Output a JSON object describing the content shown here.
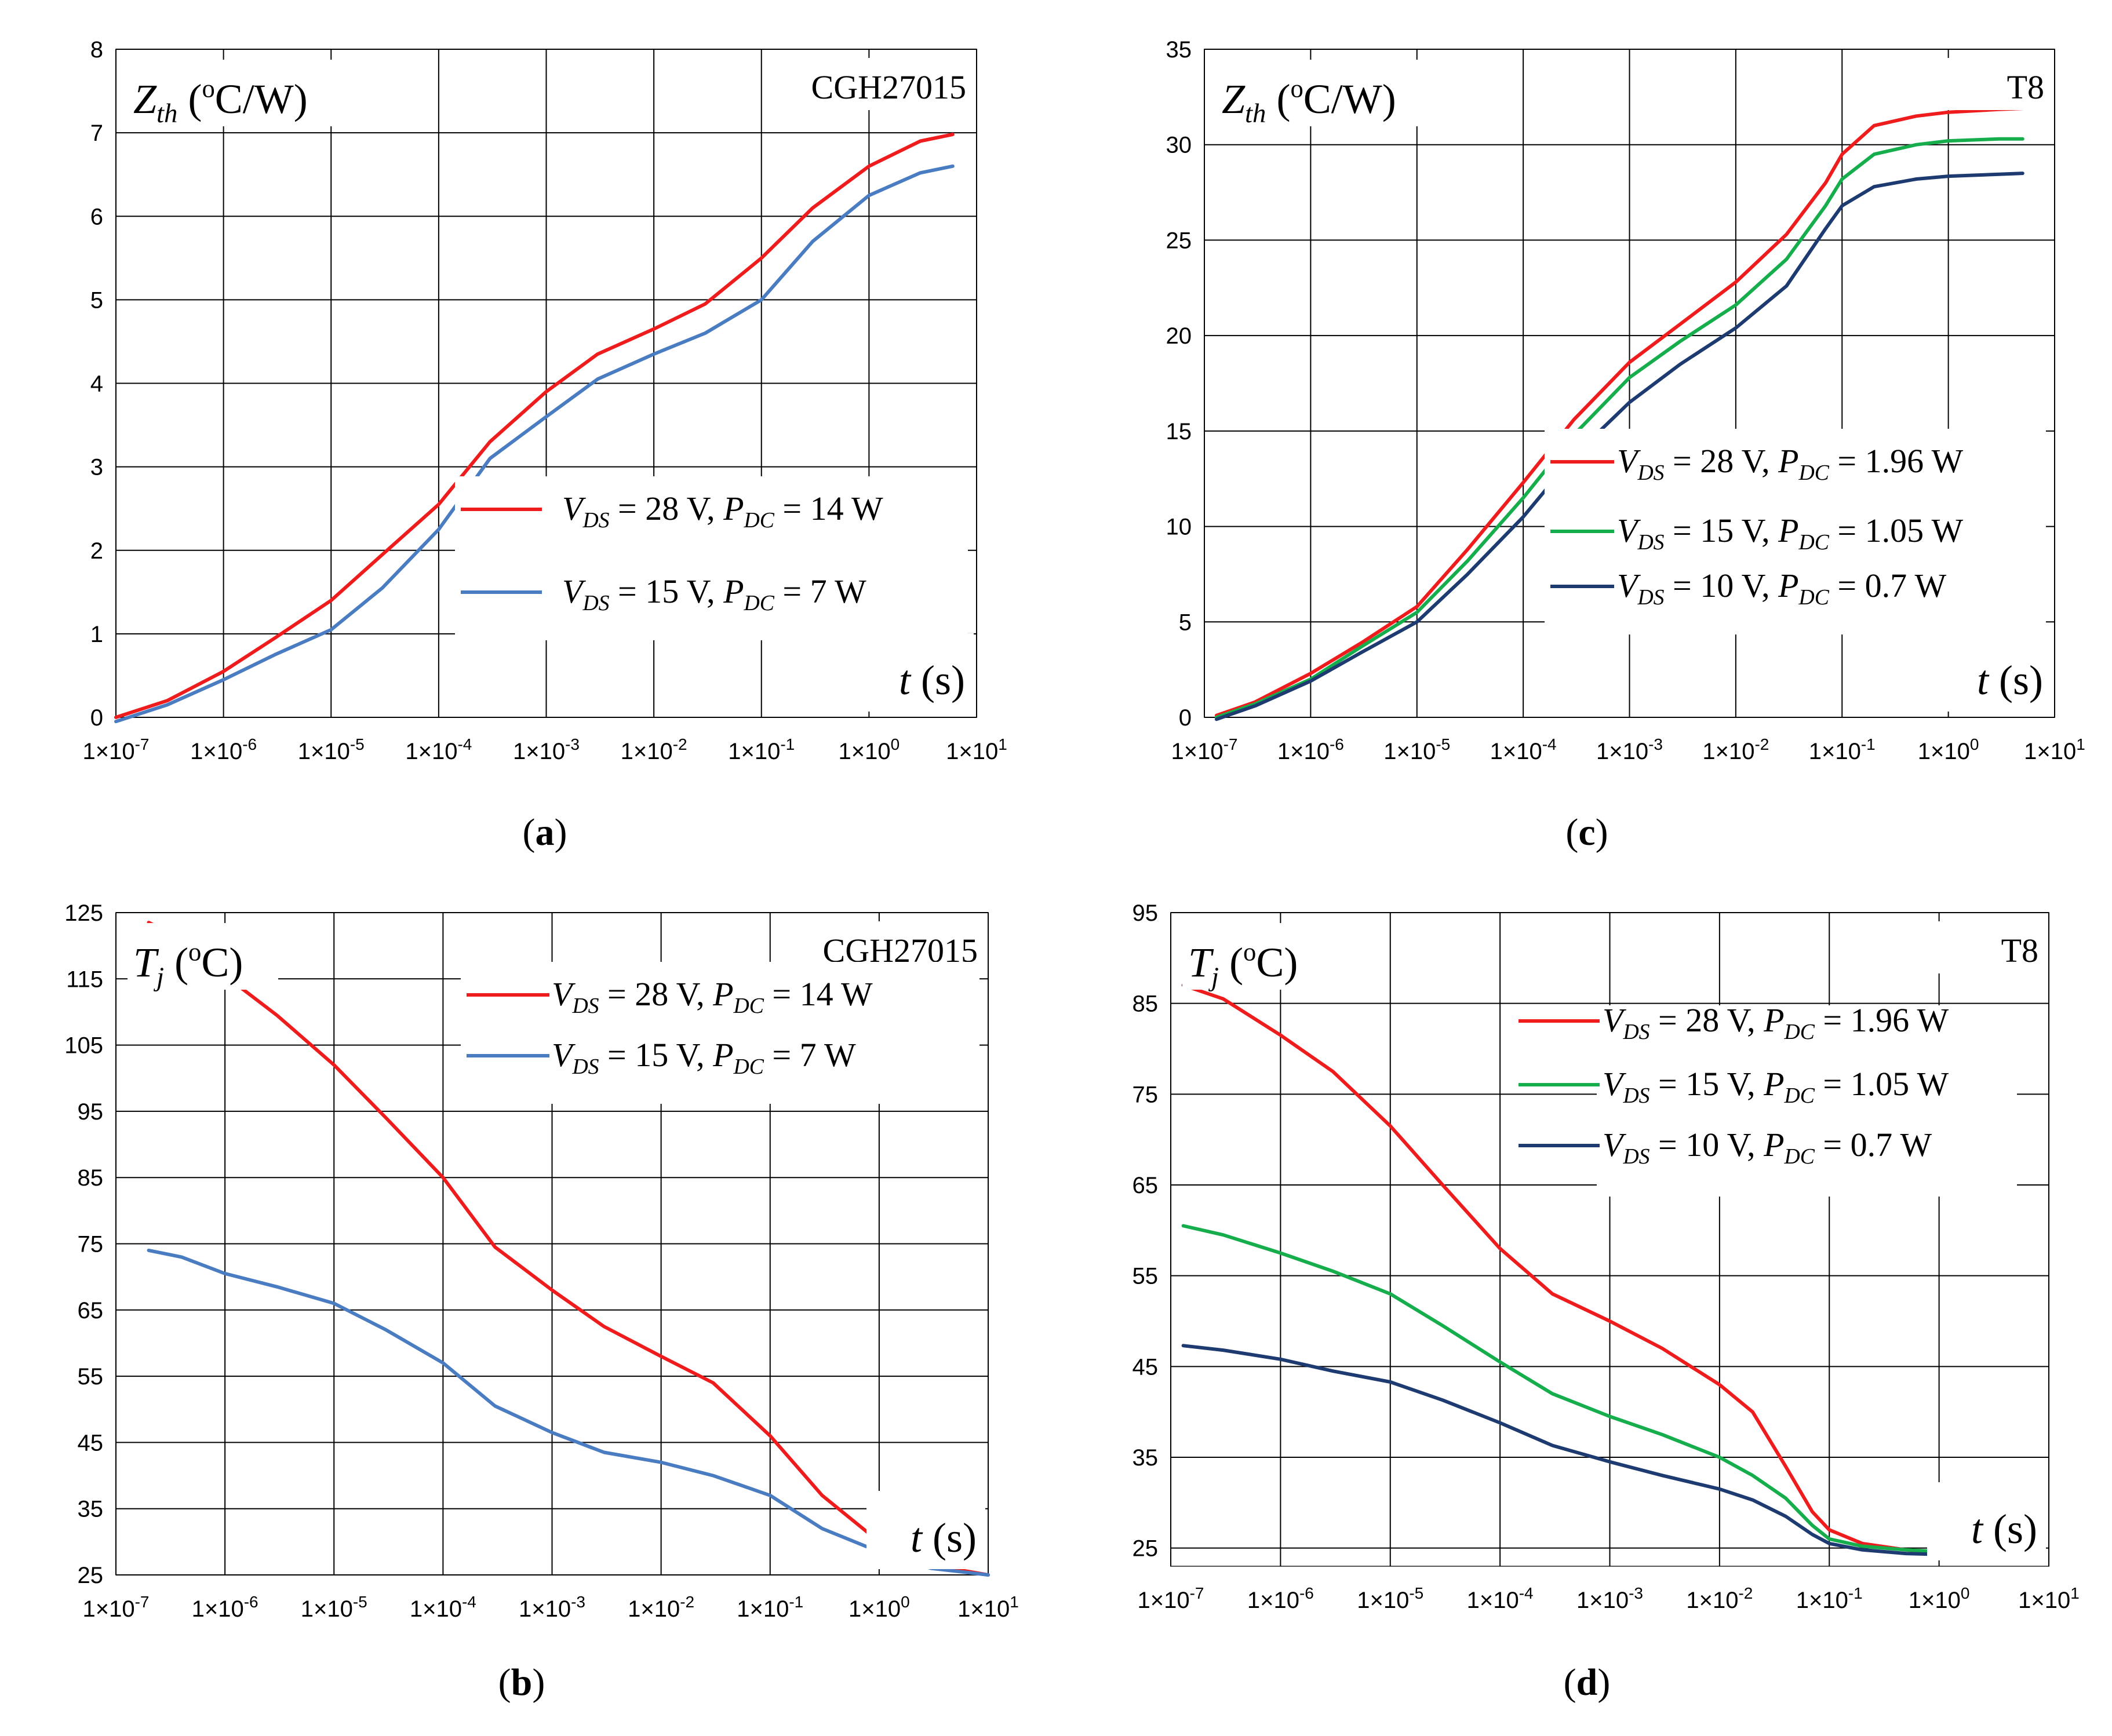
{
  "chart_data": [
    {
      "type": "line",
      "caption": "a",
      "title": "CGH27015",
      "ylabel": "Zth (oC/W)",
      "xlabel": "t (s)",
      "x_scale": "log",
      "x_ticks": [
        1e-07,
        1e-06,
        1e-05,
        0.0001,
        0.001,
        0.01,
        0.1,
        1,
        10
      ],
      "x_tick_labels": [
        [
          "1×10",
          "-7"
        ],
        [
          "1×10",
          "-6"
        ],
        [
          "1×10",
          "-5"
        ],
        [
          "1×10",
          "-4"
        ],
        [
          "1×10",
          "-3"
        ],
        [
          "1×10",
          "-2"
        ],
        [
          "1×10",
          "-1"
        ],
        [
          "1×10",
          "0"
        ],
        [
          "1×10",
          "1"
        ]
      ],
      "xlim": [
        1e-07,
        10
      ],
      "ylim": [
        0,
        8
      ],
      "y_ticks": [
        0,
        1,
        2,
        3,
        4,
        5,
        6,
        7,
        8
      ],
      "grid": true,
      "legend_position": "middle-right",
      "series": [
        {
          "name": "VDS = 28 V, PDC = 14 W",
          "color": "#ee1c1c",
          "x": [
            1e-07,
            3e-07,
            1e-06,
            3e-06,
            1e-05,
            3e-05,
            0.0001,
            0.0003,
            0.001,
            0.003,
            0.01,
            0.03,
            0.1,
            0.3,
            1,
            3,
            6
          ],
          "values": [
            0,
            0.2,
            0.55,
            0.95,
            1.4,
            1.95,
            2.55,
            3.3,
            3.9,
            4.35,
            4.65,
            4.95,
            5.5,
            6.1,
            6.6,
            6.9,
            6.98
          ]
        },
        {
          "name": "VDS = 15 V, PDC = 7 W",
          "color": "#4a7cc2",
          "x": [
            1e-07,
            3e-07,
            1e-06,
            3e-06,
            1e-05,
            3e-05,
            0.0001,
            0.0003,
            0.001,
            0.003,
            0.01,
            0.03,
            0.1,
            0.3,
            1,
            3,
            6
          ],
          "values": [
            -0.05,
            0.15,
            0.45,
            0.75,
            1.05,
            1.55,
            2.25,
            3.1,
            3.6,
            4.05,
            4.35,
            4.6,
            5.0,
            5.7,
            6.25,
            6.52,
            6.6
          ]
        }
      ]
    },
    {
      "type": "line",
      "caption": "c",
      "title": "T8",
      "ylabel": "Zth (oC/W)",
      "xlabel": "t (s)",
      "x_scale": "log",
      "x_ticks": [
        1e-07,
        1e-06,
        1e-05,
        0.0001,
        0.001,
        0.01,
        0.1,
        1,
        10
      ],
      "x_tick_labels": [
        [
          "1×10",
          "-7"
        ],
        [
          "1×10",
          "-6"
        ],
        [
          "1×10",
          "-5"
        ],
        [
          "1×10",
          "-4"
        ],
        [
          "1×10",
          "-3"
        ],
        [
          "1×10",
          "-2"
        ],
        [
          "1×10",
          "-1"
        ],
        [
          "1×10",
          "0"
        ],
        [
          "1×10",
          "1"
        ]
      ],
      "xlim": [
        1e-07,
        10
      ],
      "ylim": [
        0,
        35
      ],
      "y_ticks": [
        0,
        5,
        10,
        15,
        20,
        25,
        30,
        35
      ],
      "grid": true,
      "legend_position": "middle-right",
      "series": [
        {
          "name": "VDS = 28 V, PDC = 1.96 W",
          "color": "#ee1c1c",
          "x": [
            1.3e-07,
            3e-07,
            1e-06,
            3e-06,
            1e-05,
            3e-05,
            0.0001,
            0.0003,
            0.001,
            0.003,
            0.01,
            0.03,
            0.07,
            0.1,
            0.2,
            0.5,
            1,
            3,
            5
          ],
          "values": [
            0.1,
            0.8,
            2.3,
            3.9,
            5.8,
            8.8,
            12.3,
            15.6,
            18.6,
            20.6,
            22.8,
            25.3,
            28.0,
            29.5,
            31.0,
            31.5,
            31.7,
            31.85,
            31.9
          ]
        },
        {
          "name": "VDS = 15 V, PDC = 1.05 W",
          "color": "#16ad4d",
          "x": [
            1.3e-07,
            3e-07,
            1e-06,
            3e-06,
            1e-05,
            3e-05,
            0.0001,
            0.0003,
            0.001,
            0.003,
            0.01,
            0.03,
            0.07,
            0.1,
            0.2,
            0.5,
            1,
            3,
            5
          ],
          "values": [
            0,
            0.7,
            2.0,
            3.7,
            5.5,
            8.2,
            11.5,
            14.8,
            17.8,
            19.7,
            21.6,
            24.0,
            26.8,
            28.2,
            29.5,
            30.0,
            30.2,
            30.3,
            30.3
          ]
        },
        {
          "name": "VDS = 10 V, PDC = 0.7 W",
          "color": "#1d3b70",
          "x": [
            1.3e-07,
            3e-07,
            1e-06,
            3e-06,
            1e-05,
            3e-05,
            0.0001,
            0.0003,
            0.001,
            0.003,
            0.01,
            0.03,
            0.07,
            0.1,
            0.2,
            0.5,
            1,
            3,
            5
          ],
          "values": [
            -0.1,
            0.6,
            1.9,
            3.4,
            5.0,
            7.5,
            10.5,
            13.7,
            16.5,
            18.5,
            20.4,
            22.6,
            25.6,
            26.8,
            27.8,
            28.2,
            28.35,
            28.45,
            28.5
          ]
        }
      ]
    },
    {
      "type": "line",
      "caption": "b",
      "title": "CGH27015",
      "ylabel": "Tj (oC)",
      "xlabel": "t (s)",
      "x_scale": "log",
      "x_ticks": [
        1e-07,
        1e-06,
        1e-05,
        0.0001,
        0.001,
        0.01,
        0.1,
        1,
        10
      ],
      "x_tick_labels": [
        [
          "1×10",
          "-7"
        ],
        [
          "1×10",
          "-6"
        ],
        [
          "1×10",
          "-5"
        ],
        [
          "1×10",
          "-4"
        ],
        [
          "1×10",
          "-3"
        ],
        [
          "1×10",
          "-2"
        ],
        [
          "1×10",
          "-1"
        ],
        [
          "1×10",
          "0"
        ],
        [
          "1×10",
          "1"
        ]
      ],
      "xlim": [
        1e-07,
        10
      ],
      "ylim": [
        25,
        125
      ],
      "y_ticks": [
        25,
        35,
        45,
        55,
        65,
        75,
        85,
        95,
        105,
        115,
        125
      ],
      "grid": true,
      "legend_position": "top-right",
      "series": [
        {
          "name": "VDS = 28 V, PDC = 14 W",
          "color": "#ee1c1c",
          "x": [
            2e-07,
            4e-07,
            1e-06,
            3e-06,
            1e-05,
            3e-05,
            0.0001,
            0.0003,
            0.001,
            0.003,
            0.01,
            0.03,
            0.1,
            0.3,
            1,
            3,
            10
          ],
          "values": [
            123.5,
            121,
            115.5,
            109.5,
            102,
            94,
            85,
            74.5,
            68,
            62.5,
            58,
            54,
            46,
            37,
            30,
            26.5,
            25
          ]
        },
        {
          "name": "VDS = 15 V, PDC = 7 W",
          "color": "#4a7cc2",
          "x": [
            2e-07,
            4e-07,
            1e-06,
            3e-06,
            1e-05,
            3e-05,
            0.0001,
            0.0003,
            0.001,
            0.003,
            0.01,
            0.03,
            0.1,
            0.3,
            1,
            3,
            10
          ],
          "values": [
            74,
            73,
            70.5,
            68.5,
            66,
            62,
            57,
            50.5,
            46.5,
            43.5,
            42,
            40,
            37,
            32,
            28.5,
            26,
            25
          ]
        }
      ]
    },
    {
      "type": "line",
      "caption": "d",
      "title": "T8",
      "ylabel": "Tj (oC)",
      "xlabel": "t (s)",
      "x_scale": "log",
      "x_ticks": [
        1e-07,
        1e-06,
        1e-05,
        0.0001,
        0.001,
        0.01,
        0.1,
        1,
        10
      ],
      "x_tick_labels": [
        [
          "1×10",
          "-7"
        ],
        [
          "1×10",
          "-6"
        ],
        [
          "1×10",
          "-5"
        ],
        [
          "1×10",
          "-4"
        ],
        [
          "1×10",
          "-3"
        ],
        [
          "1×10",
          "-2"
        ],
        [
          "1×10",
          "-1"
        ],
        [
          "1×10",
          "0"
        ],
        [
          "1×10",
          "1"
        ]
      ],
      "xlim": [
        1e-07,
        10
      ],
      "ylim": [
        23,
        95
      ],
      "y_ticks": [
        25,
        35,
        45,
        55,
        65,
        75,
        85,
        95
      ],
      "grid": true,
      "legend_position": "top-right",
      "series": [
        {
          "name": "VDS = 28 V, PDC = 1.96 W",
          "color": "#ee1c1c",
          "x": [
            1.3e-07,
            3e-07,
            1e-06,
            3e-06,
            1e-05,
            3e-05,
            0.0001,
            0.0003,
            0.001,
            0.003,
            0.01,
            0.02,
            0.04,
            0.07,
            0.1,
            0.2,
            0.5,
            1,
            3,
            5
          ],
          "values": [
            87,
            85.5,
            81.5,
            77.5,
            71.5,
            65,
            58,
            53,
            50,
            47,
            43,
            40,
            34,
            29,
            27,
            25.5,
            24.8,
            24.5,
            24.5,
            24.5
          ]
        },
        {
          "name": "VDS = 15 V, PDC = 1.05 W",
          "color": "#16ad4d",
          "x": [
            1.3e-07,
            3e-07,
            1e-06,
            3e-06,
            1e-05,
            3e-05,
            0.0001,
            0.0003,
            0.001,
            0.003,
            0.01,
            0.02,
            0.04,
            0.07,
            0.1,
            0.2,
            0.5,
            1,
            3,
            5
          ],
          "values": [
            60.5,
            59.5,
            57.5,
            55.5,
            53,
            49.5,
            45.5,
            42,
            39.5,
            37.5,
            35,
            33,
            30.5,
            27.5,
            26,
            25.2,
            24.8,
            24.6,
            24.5,
            24.5
          ]
        },
        {
          "name": "VDS = 10 V, PDC = 0.7 W",
          "color": "#1d3b70",
          "x": [
            1.3e-07,
            3e-07,
            1e-06,
            3e-06,
            1e-05,
            3e-05,
            0.0001,
            0.0003,
            0.001,
            0.003,
            0.01,
            0.02,
            0.04,
            0.07,
            0.1,
            0.2,
            0.5,
            1,
            3,
            5
          ],
          "values": [
            47.3,
            46.8,
            45.8,
            44.5,
            43.3,
            41.3,
            38.8,
            36.3,
            34.5,
            33,
            31.5,
            30.3,
            28.5,
            26.5,
            25.5,
            24.8,
            24.4,
            24.3,
            24.2,
            24.2
          ]
        }
      ]
    }
  ]
}
